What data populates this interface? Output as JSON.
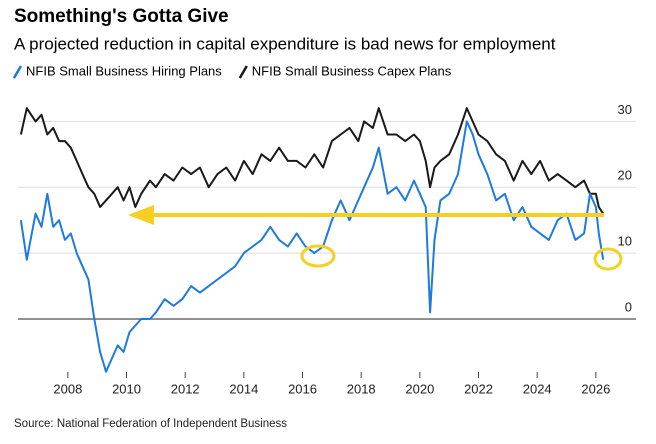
{
  "chart_data": {
    "type": "line",
    "title": "Something's Gotta Give",
    "subtitle": "A projected reduction in capital expenditure is bad news for employment",
    "source": "Source: National Federation of Independent Business",
    "x": [
      2006.4,
      2006.6,
      2006.9,
      2007.1,
      2007.3,
      2007.5,
      2007.7,
      2007.9,
      2008.1,
      2008.3,
      2008.5,
      2008.7,
      2008.9,
      2009.1,
      2009.3,
      2009.5,
      2009.7,
      2009.9,
      2010.1,
      2010.3,
      2010.5,
      2010.8,
      2011.0,
      2011.3,
      2011.6,
      2011.9,
      2012.2,
      2012.5,
      2012.8,
      2013.1,
      2013.4,
      2013.7,
      2014.0,
      2014.3,
      2014.6,
      2014.9,
      2015.2,
      2015.5,
      2015.8,
      2016.1,
      2016.4,
      2016.7,
      2017.0,
      2017.3,
      2017.6,
      2017.9,
      2018.1,
      2018.4,
      2018.6,
      2018.9,
      2019.2,
      2019.5,
      2019.8,
      2020.0,
      2020.2,
      2020.35,
      2020.5,
      2020.7,
      2021.0,
      2021.3,
      2021.6,
      2021.8,
      2022.0,
      2022.3,
      2022.6,
      2022.9,
      2023.2,
      2023.5,
      2023.8,
      2024.1,
      2024.4,
      2024.7,
      2025.0,
      2025.3,
      2025.6,
      2025.8,
      2026.0,
      2026.1,
      2026.25
    ],
    "series": [
      {
        "name": "NFIB Small Business Hiring Plans",
        "color": "#1f7ae0",
        "values": [
          15,
          9,
          16,
          14,
          19,
          14,
          15,
          12,
          13,
          10,
          8,
          6,
          0,
          -5,
          -8,
          -6,
          -4,
          -5,
          -2,
          -1,
          0,
          0,
          1,
          3,
          2,
          3,
          5,
          4,
          5,
          6,
          7,
          8,
          10,
          11,
          12,
          14,
          12,
          11,
          13,
          11,
          10,
          11,
          15,
          18,
          15,
          18,
          20,
          23,
          26,
          19,
          20,
          18,
          21,
          19,
          17,
          1,
          12,
          18,
          19,
          22,
          30,
          28,
          25,
          22,
          18,
          19,
          15,
          17,
          14,
          13,
          12,
          15,
          16,
          12,
          13,
          19,
          17,
          13,
          9
        ]
      },
      {
        "name": "NFIB Small Business Capex Plans",
        "color": "#1a1a1a",
        "values": [
          28,
          32,
          30,
          31,
          28,
          29,
          27,
          27,
          26,
          24,
          22,
          20,
          19,
          17,
          18,
          19,
          20,
          18,
          20,
          17,
          19,
          21,
          20,
          22,
          21,
          23,
          22,
          23,
          20,
          22,
          23,
          21,
          24,
          22,
          25,
          24,
          26,
          24,
          24,
          23,
          25,
          23,
          27,
          28,
          29,
          27,
          30,
          29,
          32,
          28,
          28,
          27,
          28,
          27,
          24,
          20,
          23,
          24,
          25,
          28,
          32,
          30,
          28,
          27,
          25,
          24,
          21,
          24,
          22,
          24,
          21,
          22,
          21,
          20,
          21,
          19,
          19,
          17,
          16
        ]
      }
    ],
    "xlim": [
      2006.3,
      2026.55
    ],
    "xticks": [
      2008,
      2010,
      2012,
      2014,
      2016,
      2018,
      2020,
      2022,
      2024,
      2026
    ],
    "ylim": [
      -8.5,
      34
    ],
    "yticks": [
      0,
      10,
      20,
      30
    ],
    "grid": true
  }
}
